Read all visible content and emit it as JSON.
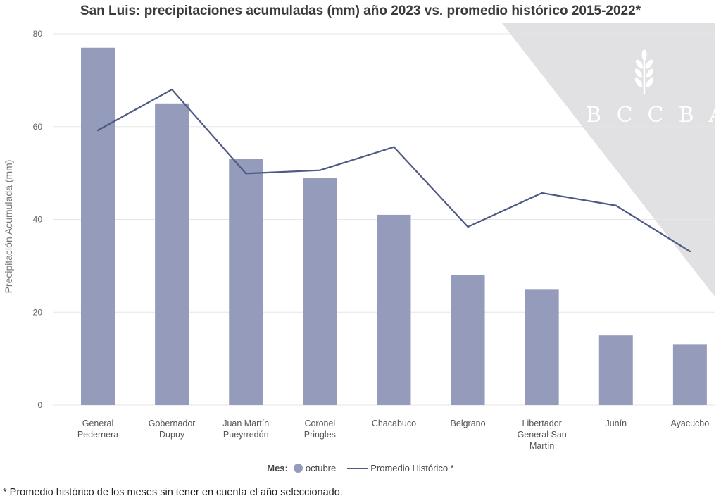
{
  "title": "San Luis: precipitaciones acumuladas (mm) año 2023 vs. promedio histórico 2015-2022*",
  "watermark": {
    "text": "BCCBA",
    "icon": "wheat-icon",
    "color": "#e1e0e2"
  },
  "legend": {
    "title": "Mes:",
    "series_bar": "octubre",
    "series_line": "Promedio Histórico *"
  },
  "footnote": "* Promedio histórico de los meses sin tener en cuenta el año seleccionado.",
  "colors": {
    "bar": "#959cbb",
    "line": "#4e5a85",
    "grid": "#e6e6e6"
  },
  "chart_data": {
    "type": "bar",
    "title": "San Luis: precipitaciones acumuladas (mm) año 2023 vs. promedio histórico 2015-2022*",
    "xlabel": "",
    "ylabel": "Precipitación Acumulada (mm)",
    "ylim": [
      0,
      80
    ],
    "yticks": [
      0,
      20,
      40,
      60,
      80
    ],
    "grid": true,
    "legend_position": "bottom-center",
    "categories": [
      [
        "General",
        "Pedernera"
      ],
      [
        "Gobernador",
        "Dupuy"
      ],
      [
        "Juan Martín",
        "Pueyrredón"
      ],
      [
        "Coronel",
        "Pringles"
      ],
      [
        "Chacabuco"
      ],
      [
        "Belgrano"
      ],
      [
        "Libertador",
        "General San",
        "Martín"
      ],
      [
        "Junín"
      ],
      [
        "Ayacucho"
      ]
    ],
    "series": [
      {
        "name": "octubre",
        "type": "bar",
        "values": [
          77,
          65,
          53,
          49,
          41,
          28,
          25,
          15,
          13
        ]
      },
      {
        "name": "Promedio Histórico *",
        "type": "line",
        "values": [
          59.2,
          68,
          49.9,
          50.6,
          55.6,
          38.4,
          45.7,
          43,
          33.1
        ]
      }
    ]
  }
}
